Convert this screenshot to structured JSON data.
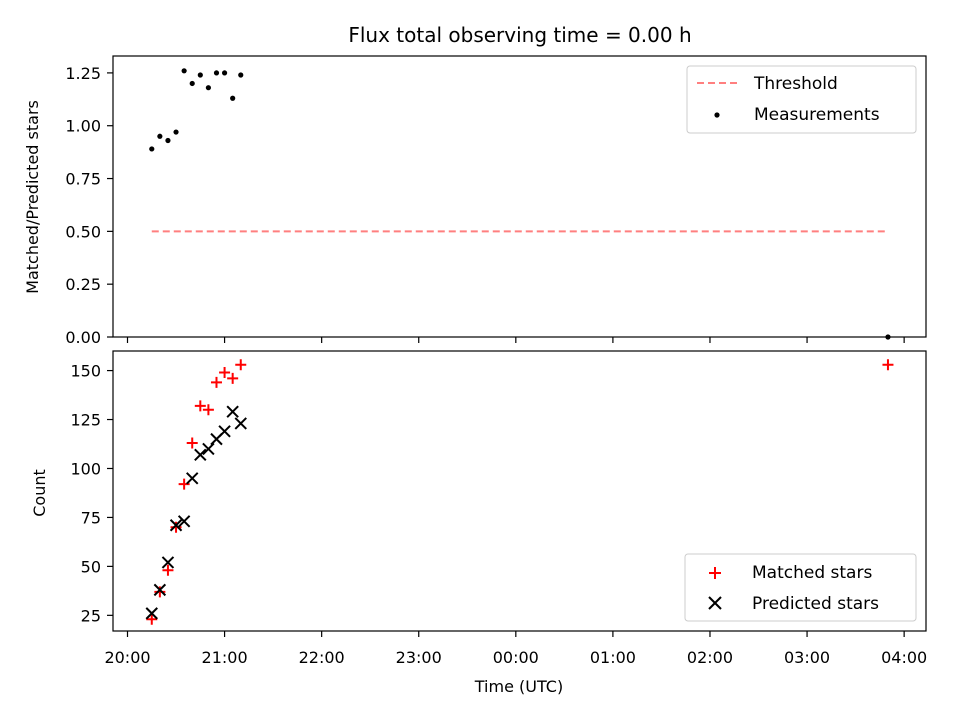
{
  "chart_data": [
    {
      "type": "scatter",
      "title": "Flux total observing time = 0.00 h",
      "xlabel": "",
      "ylabel": "Matched/Predicted stars",
      "ylim": [
        0,
        1.33
      ],
      "yticks": [
        "0.00",
        "0.25",
        "0.50",
        "0.75",
        "1.00",
        "1.25"
      ],
      "legend": "top-right",
      "series": [
        {
          "name": "Threshold",
          "kind": "dashed-line",
          "color": "#ff7f7f",
          "x": [
            "20:15",
            "03:50"
          ],
          "y": [
            0.5,
            0.5
          ]
        },
        {
          "name": "Measurements",
          "kind": "dots",
          "color": "#000000",
          "x": [
            "20:15",
            "20:20",
            "20:25",
            "20:30",
            "20:35",
            "20:40",
            "20:45",
            "20:50",
            "20:55",
            "21:00",
            "21:05",
            "21:10",
            "03:50"
          ],
          "y": [
            0.89,
            0.95,
            0.93,
            0.97,
            1.26,
            1.2,
            1.24,
            1.18,
            1.25,
            1.25,
            1.13,
            1.24,
            0.0
          ]
        }
      ]
    },
    {
      "type": "scatter",
      "title": "",
      "xlabel": "Time (UTC)",
      "ylabel": "Count",
      "ylim": [
        17,
        160
      ],
      "yticks": [
        "25",
        "50",
        "75",
        "100",
        "125",
        "150"
      ],
      "xticks": [
        "20:00",
        "21:00",
        "22:00",
        "23:00",
        "00:00",
        "01:00",
        "02:00",
        "03:00",
        "04:00"
      ],
      "legend": "bottom-right",
      "series": [
        {
          "name": "Matched stars",
          "kind": "plus",
          "color": "#ff0000",
          "x": [
            "20:15",
            "20:20",
            "20:25",
            "20:30",
            "20:35",
            "20:40",
            "20:45",
            "20:50",
            "20:55",
            "21:00",
            "21:05",
            "21:10",
            "03:50"
          ],
          "y": [
            23,
            37,
            48,
            70,
            92,
            113,
            132,
            130,
            144,
            149,
            146,
            153,
            153
          ]
        },
        {
          "name": "Predicted stars",
          "kind": "x",
          "color": "#000000",
          "x": [
            "20:15",
            "20:20",
            "20:25",
            "20:30",
            "20:35",
            "20:40",
            "20:45",
            "20:50",
            "20:55",
            "21:00",
            "21:05",
            "21:10"
          ],
          "y": [
            26,
            38,
            52,
            71,
            73,
            95,
            107,
            110,
            115,
            119,
            129,
            123
          ]
        }
      ]
    }
  ]
}
